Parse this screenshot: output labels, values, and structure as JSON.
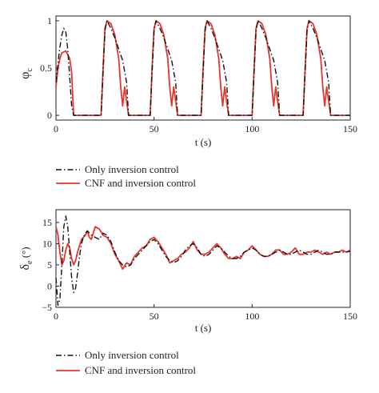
{
  "colors": {
    "series1": "#111111",
    "series2": "#e8352e"
  },
  "chart_data": [
    {
      "type": "line",
      "xlabel": "t (s)",
      "ylabel_main": "φ",
      "ylabel_sub": "c",
      "xlim": [
        0,
        150
      ],
      "ylim": [
        -0.05,
        1.05
      ],
      "xticks": [
        "0",
        "50",
        "100",
        "150"
      ],
      "xtick_values": [
        0,
        50,
        100,
        150
      ],
      "yticks": [
        "0",
        "0.5",
        "1"
      ],
      "ytick_values": [
        0,
        0.5,
        1
      ],
      "grid": false,
      "legend_position": "below",
      "series": [
        {
          "name": "Only inversion control",
          "style": "dash-dot",
          "x": [
            0,
            1,
            2,
            3,
            4,
            5,
            6,
            7,
            8,
            9,
            23,
            24,
            25,
            26,
            28,
            30,
            32,
            34,
            36,
            37,
            48,
            49,
            50,
            51,
            53,
            55,
            57,
            59,
            61,
            62,
            74,
            75,
            76,
            77,
            79,
            81,
            83,
            85,
            87,
            88,
            100,
            101,
            102,
            103,
            105,
            107,
            109,
            111,
            113,
            114,
            126,
            127,
            128,
            129,
            131,
            133,
            135,
            137,
            139,
            140,
            150
          ],
          "y": [
            0.35,
            0.55,
            0.72,
            0.85,
            0.92,
            0.88,
            0.7,
            0.4,
            0.1,
            0,
            0,
            0.45,
            0.9,
            1.0,
            0.92,
            0.82,
            0.7,
            0.58,
            0.35,
            0,
            0,
            0.45,
            0.9,
            1.0,
            0.92,
            0.82,
            0.7,
            0.58,
            0.35,
            0,
            0,
            0.45,
            0.9,
            1.0,
            0.92,
            0.82,
            0.7,
            0.58,
            0.35,
            0,
            0,
            0.45,
            0.9,
            1.0,
            0.92,
            0.82,
            0.7,
            0.58,
            0.35,
            0,
            0,
            0.45,
            0.9,
            1.0,
            0.92,
            0.82,
            0.7,
            0.58,
            0.35,
            0,
            0
          ]
        },
        {
          "name": "CNF and inversion control",
          "style": "solid",
          "x": [
            0,
            1,
            2,
            3,
            5,
            7,
            8,
            9,
            23,
            24,
            25,
            26,
            28,
            30,
            32,
            33,
            34,
            35,
            36,
            37,
            48,
            49,
            50,
            51,
            53,
            55,
            57,
            58,
            59,
            60,
            61,
            62,
            74,
            75,
            76,
            77,
            79,
            81,
            83,
            84,
            85,
            86,
            87,
            88,
            100,
            101,
            102,
            103,
            105,
            107,
            109,
            110,
            111,
            112,
            113,
            114,
            126,
            127,
            128,
            129,
            131,
            133,
            135,
            136,
            137,
            138,
            139,
            140,
            150
          ],
          "y": [
            0.3,
            0.5,
            0.6,
            0.66,
            0.68,
            0.6,
            0.45,
            0,
            0,
            0.5,
            0.92,
            1.0,
            0.97,
            0.85,
            0.6,
            0.3,
            0.1,
            0.3,
            0.15,
            0,
            0,
            0.5,
            0.92,
            1.0,
            0.97,
            0.85,
            0.6,
            0.3,
            0.1,
            0.3,
            0.15,
            0,
            0,
            0.5,
            0.92,
            1.0,
            0.97,
            0.85,
            0.6,
            0.3,
            0.1,
            0.3,
            0.15,
            0,
            0,
            0.5,
            0.92,
            1.0,
            0.97,
            0.85,
            0.6,
            0.3,
            0.1,
            0.3,
            0.15,
            0,
            0,
            0.5,
            0.92,
            1.0,
            0.97,
            0.85,
            0.6,
            0.3,
            0.1,
            0.3,
            0.15,
            0,
            0
          ]
        }
      ]
    },
    {
      "type": "line",
      "xlabel": "t (s)",
      "ylabel_main": "δ",
      "ylabel_sub": "e",
      "ylabel_unit": " (°)",
      "xlim": [
        0,
        150
      ],
      "ylim": [
        -5,
        18
      ],
      "xticks": [
        "0",
        "50",
        "100",
        "150"
      ],
      "xtick_values": [
        0,
        50,
        100,
        150
      ],
      "yticks": [
        "−5",
        "0",
        "5",
        "10",
        "15"
      ],
      "ytick_values": [
        -5,
        0,
        5,
        10,
        15
      ],
      "grid": false,
      "legend_position": "below",
      "series": [
        {
          "name": "Only inversion control",
          "style": "dash-dot",
          "x": [
            0,
            1,
            2,
            3,
            4,
            5,
            6,
            7,
            8,
            9,
            10,
            11,
            12,
            13,
            14,
            15,
            16,
            17,
            18,
            20,
            22,
            24,
            26,
            28,
            30,
            32,
            34,
            36,
            38,
            40,
            42,
            44,
            46,
            48,
            50,
            52,
            54,
            56,
            58,
            60,
            62,
            64,
            66,
            68,
            70,
            72,
            74,
            76,
            78,
            80,
            82,
            84,
            86,
            88,
            90,
            92,
            94,
            96,
            98,
            100,
            102,
            104,
            106,
            108,
            110,
            112,
            114,
            116,
            118,
            120,
            122,
            124,
            126,
            128,
            130,
            132,
            134,
            136,
            138,
            140,
            142,
            144,
            146,
            148,
            150
          ],
          "y": [
            2,
            -4.5,
            -3,
            5,
            14,
            16.5,
            14,
            8,
            2,
            -1.5,
            -0.5,
            3,
            7,
            10,
            11.5,
            12.5,
            13,
            12.5,
            12,
            11.5,
            11,
            12.5,
            12,
            10.5,
            8,
            6,
            5,
            4.5,
            5,
            6.5,
            7.5,
            8.5,
            9.5,
            10.5,
            11,
            10,
            8.5,
            7,
            6,
            5.5,
            6,
            7,
            8.5,
            9.5,
            10,
            9,
            7.5,
            7,
            7.5,
            8.5,
            9.5,
            9,
            8,
            7,
            6.5,
            6.5,
            7,
            8,
            8.5,
            9,
            8.5,
            7.5,
            7,
            7,
            7.5,
            8,
            8.5,
            8,
            7.5,
            7.5,
            8,
            8.5,
            8,
            7.5,
            7.5,
            8,
            8.5,
            8,
            7.5,
            7.5,
            8,
            8,
            8,
            8,
            8.2
          ]
        },
        {
          "name": "CNF and inversion control",
          "style": "solid",
          "x": [
            0,
            1,
            2,
            3,
            4,
            5,
            6,
            7,
            8,
            9,
            10,
            11,
            12,
            13,
            14,
            15,
            16,
            17,
            18,
            20,
            22,
            24,
            26,
            28,
            30,
            32,
            34,
            36,
            38,
            40,
            42,
            44,
            46,
            48,
            50,
            52,
            54,
            56,
            58,
            60,
            62,
            64,
            66,
            68,
            70,
            72,
            74,
            76,
            78,
            80,
            82,
            84,
            86,
            88,
            90,
            92,
            94,
            96,
            98,
            100,
            102,
            104,
            106,
            108,
            110,
            112,
            114,
            116,
            118,
            120,
            122,
            124,
            126,
            128,
            130,
            132,
            134,
            136,
            138,
            140,
            142,
            144,
            146,
            148,
            150
          ],
          "y": [
            14,
            12,
            8,
            5,
            6,
            8.5,
            10,
            9,
            6.5,
            5,
            6,
            8,
            9.5,
            11,
            11.5,
            12,
            13,
            11.5,
            11,
            14,
            13.5,
            12,
            11.5,
            10,
            7.5,
            6,
            4,
            5.5,
            5,
            7,
            8,
            9,
            9.5,
            11,
            11.5,
            10.5,
            9,
            7.5,
            5.5,
            6,
            6.5,
            7.5,
            8,
            9,
            10.5,
            8.5,
            7.5,
            7.5,
            8,
            9,
            10,
            9,
            7.5,
            6.5,
            6.5,
            7,
            6.5,
            8,
            8.5,
            9.5,
            8.5,
            7.5,
            7,
            7,
            7.5,
            8.5,
            8.5,
            7.5,
            7.5,
            8,
            9,
            7.5,
            7.5,
            8,
            8,
            8.5,
            8,
            7.5,
            8,
            7.5,
            8,
            8,
            8.5,
            8,
            8.5
          ]
        }
      ]
    }
  ]
}
